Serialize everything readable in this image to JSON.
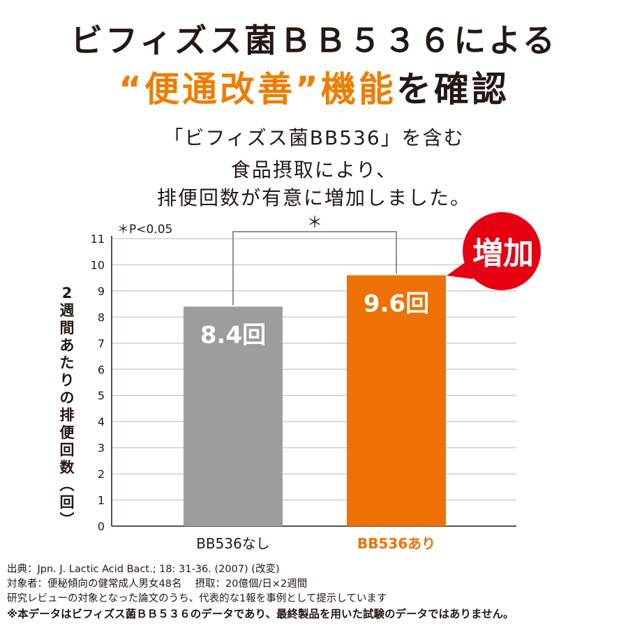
{
  "title": {
    "line1": "ビフィズス菌ＢＢ５３６による",
    "line2_quote_open": "“",
    "line2_accent": "便通改善",
    "line2_quote_close": "”",
    "line2_accent2": "機能",
    "line2_rest": "を確認"
  },
  "subtitle": {
    "line1": "「ビフィズス菌BB536」を含む",
    "line2": "食品摂取により、",
    "line3": "排便回数が有意に増加しました。"
  },
  "badge": {
    "label": "増加"
  },
  "chart_data": {
    "type": "bar",
    "categories": [
      "BB536なし",
      "BB536あり"
    ],
    "values": [
      8.4,
      9.6
    ],
    "value_labels": [
      "8.4回",
      "9.6回"
    ],
    "ylabel": "2週間あたりの排便回数(回)",
    "ylim": [
      0,
      11
    ],
    "yticks": [
      0,
      1,
      2,
      3,
      4,
      5,
      6,
      7,
      8,
      9,
      10,
      11
    ],
    "bar_colors": [
      "#9d9d9d",
      "#ee7203"
    ],
    "category_colors": [
      "#231815",
      "#ee7203"
    ],
    "significance_note": "＊P<0.05",
    "significance_mark": "＊",
    "grid": true
  },
  "footnotes": [
    "出典：Jpn. J. Lactic Acid Bact.; 18: 31-36. (2007) (改変)",
    "対象者：便秘傾向の健常成人男女48名　 摂取：20億個/日×2週間",
    "研究レビューの対象となった論文のうち、代表的な1報を事例として提示しています",
    "※本データはビフィズス菌ＢＢ５３６のデータであり、最終製品を用いた試験のデータではありません。"
  ],
  "colors": {
    "accent": "#ee7d00",
    "badge": "#e60012",
    "gray_bar": "#9d9d9d",
    "orange_bar": "#ee7203"
  }
}
